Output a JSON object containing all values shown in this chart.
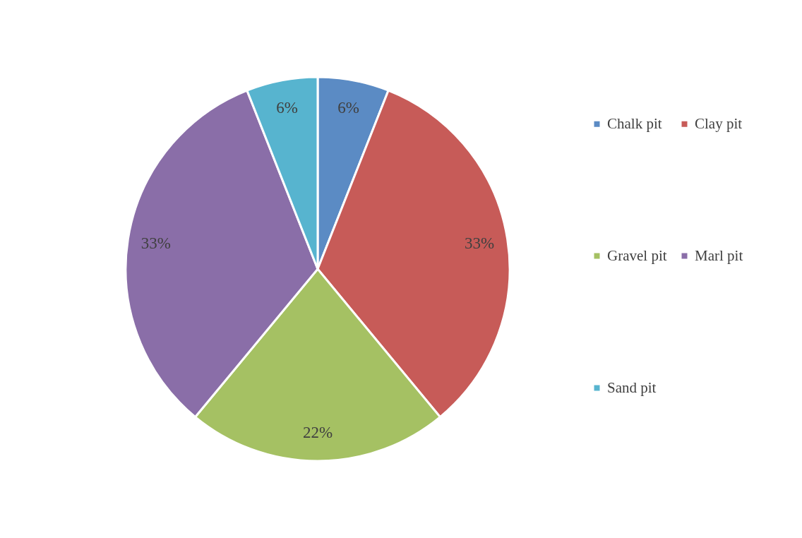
{
  "chart_data": {
    "type": "pie",
    "categories": [
      "Chalk pit",
      "Clay pit",
      "Gravel pit",
      "Marl pit",
      "Sand pit"
    ],
    "values": [
      6,
      33,
      22,
      33,
      6
    ],
    "value_labels": [
      "6%",
      "33%",
      "22%",
      "33%",
      "6%"
    ],
    "colors": [
      "#5b8bc4",
      "#c75b58",
      "#a5c163",
      "#8a6ea8",
      "#57b4cf"
    ],
    "legend": "right"
  }
}
